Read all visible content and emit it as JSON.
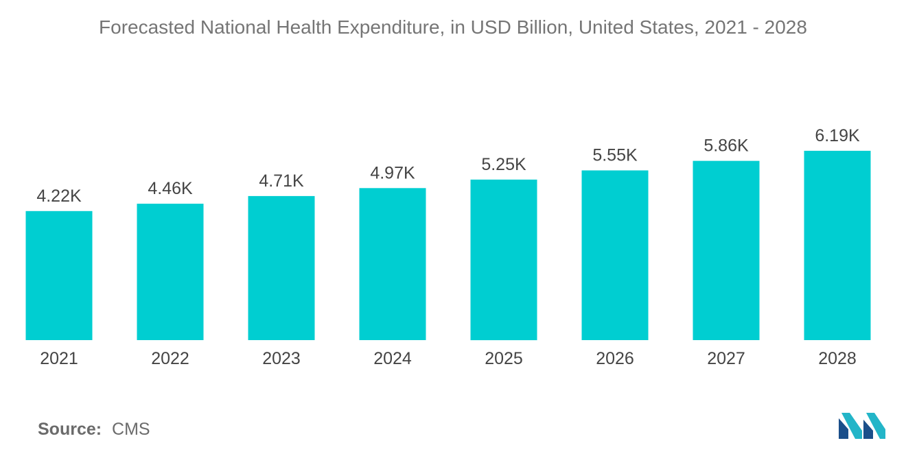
{
  "title": "Forecasted National Health Expenditure, in USD Billion, United States, 2021 - 2028",
  "source": {
    "label": "Source:",
    "value": "CMS"
  },
  "colors": {
    "bar": "#00CED1",
    "title": "#757575",
    "label": "#444444",
    "tick": "#444444",
    "logo_dark": "#1b4f8a",
    "logo_light": "#23b5c8"
  },
  "logo": {
    "icon": "mordor-intelligence-logo"
  },
  "chart_data": {
    "type": "bar",
    "title": "Forecasted National Health Expenditure, in USD Billion, United States, 2021 - 2028",
    "xlabel": "",
    "ylabel": "",
    "categories": [
      "2021",
      "2022",
      "2023",
      "2024",
      "2025",
      "2026",
      "2027",
      "2028"
    ],
    "values": [
      4220,
      4460,
      4710,
      4970,
      5250,
      5550,
      5860,
      6190
    ],
    "data_labels": [
      "4.22K",
      "4.46K",
      "4.71K",
      "4.97K",
      "5.25K",
      "5.55K",
      "5.86K",
      "6.19K"
    ],
    "ylim": [
      0,
      6990
    ],
    "grid": false,
    "legend": "none"
  }
}
